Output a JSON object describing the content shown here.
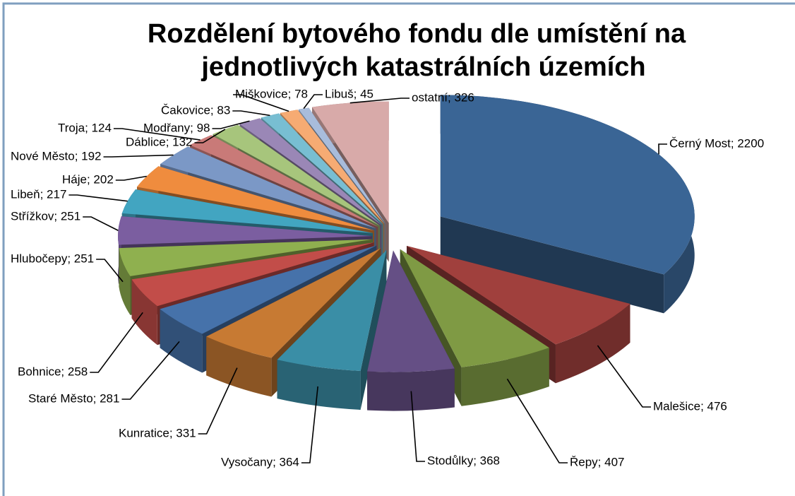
{
  "chart_data": {
    "type": "pie",
    "three_d": true,
    "title": [
      "Rozdělení bytového fondu dle umístění na",
      "jednotlivých katastrálních územích"
    ],
    "values": [
      2200,
      476,
      407,
      368,
      364,
      331,
      281,
      258,
      251,
      251,
      217,
      202,
      192,
      124,
      132,
      98,
      83,
      78,
      45,
      326
    ],
    "value_labels": [
      "Černý Most; 2200",
      "Malešice; 476",
      "Řepy; 407",
      "Stodůlky; 368",
      "Vysočany; 364",
      "Kunratice; 331",
      "Staré Město; 281",
      "Bohnice; 258",
      "Hlubočepy; 251",
      "Střížkov; 251",
      "Libeň; 217",
      "Háje; 202",
      "Nové Město; 192",
      "Troja; 124",
      "Dáblice; 132",
      "Modřany; 98",
      "Čakovice; 83",
      "Miškovice; 78",
      "Libuš; 45",
      "ostatní; 326"
    ],
    "colors": [
      "#3a6595",
      "#a0403d",
      "#7f9a44",
      "#654f85",
      "#3a8ea6",
      "#c77a33",
      "#4672aa",
      "#c24d49",
      "#8fb04f",
      "#7b5ea0",
      "#42a5c1",
      "#ef8c3e",
      "#7b98c6",
      "#c97a78",
      "#a7c57c",
      "#9a87b6",
      "#78bed2",
      "#f6ab73",
      "#a8bcdb",
      "#d8aaa9"
    ]
  }
}
